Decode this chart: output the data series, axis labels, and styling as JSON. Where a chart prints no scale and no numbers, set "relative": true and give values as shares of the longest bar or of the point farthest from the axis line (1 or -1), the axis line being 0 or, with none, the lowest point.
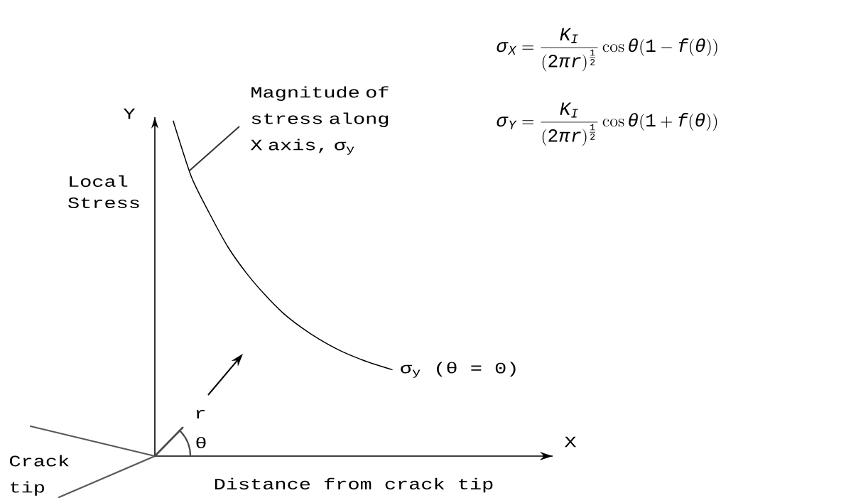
{
  "chart_data": {
    "type": "line",
    "relative": true,
    "xlabel": "Distance from crack tip",
    "ylabel": "Local Stress",
    "categories": [
      null,
      null,
      null,
      null,
      null,
      null,
      null,
      null,
      null,
      null,
      null,
      null,
      null
    ],
    "series": [
      {
        "name": "σ$_{y}$ (θ = 0)",
        "color": "#000000",
        "values": [
          1,
          0.832,
          0.722,
          0.623,
          0.546,
          0.482,
          0.427,
          0.384,
          0.348,
          0.318,
          0.294,
          0.274,
          0.257
        ]
      }
    ],
    "annotations": [
      "\\sigma_X = \\frac{K_I}{(2\\pi r)^{\\frac{1}{2}}} \\cos \\theta(1-f(\\theta))",
      "\\sigma_Y = \\frac{K_I}{(2\\pi r)^{\\frac{1}{2}}} \\cos \\theta(1+f(\\theta))",
      "Magnitude of stress along X axis, σ$_{y}$",
      "Crack tip",
      "r",
      "θ",
      "Y",
      "X"
    ]
  }
}
